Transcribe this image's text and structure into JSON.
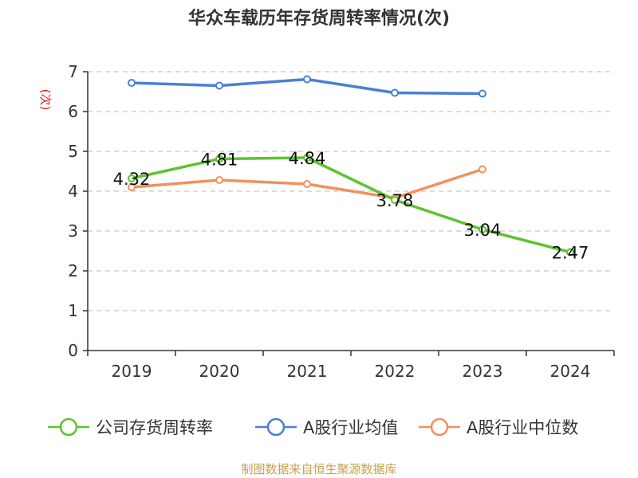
{
  "chart_data": {
    "type": "line",
    "title": "华众车载历年存货周转率情况(次)",
    "ylabel": "(次)",
    "xlabel": "",
    "categories": [
      "2019",
      "2020",
      "2021",
      "2022",
      "2023",
      "2024"
    ],
    "ylim": [
      0,
      7
    ],
    "yticks": [
      0,
      1,
      2,
      3,
      4,
      5,
      6,
      7
    ],
    "grid": true,
    "legend_position": "bottom",
    "series": [
      {
        "name": "公司存货周转率",
        "color": "#5ec32e",
        "values": [
          4.32,
          4.81,
          4.84,
          3.78,
          3.04,
          2.47
        ],
        "labels": [
          "4.32",
          "4.81",
          "4.84",
          "3.78",
          "3.04",
          "2.47"
        ]
      },
      {
        "name": "A股行业均值",
        "color": "#4a7fd6",
        "values": [
          6.72,
          6.65,
          6.81,
          6.47,
          6.45,
          null
        ]
      },
      {
        "name": "A股行业中位数",
        "color": "#f4905a",
        "values": [
          4.1,
          4.28,
          4.18,
          3.83,
          4.55,
          null
        ]
      }
    ],
    "source": "制图数据来自恒生聚源数据库"
  }
}
